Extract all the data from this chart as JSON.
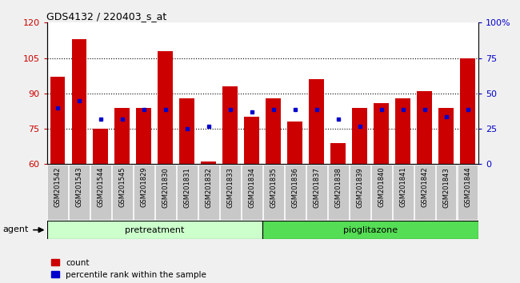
{
  "title": "GDS4132 / 220403_s_at",
  "samples": [
    "GSM201542",
    "GSM201543",
    "GSM201544",
    "GSM201545",
    "GSM201829",
    "GSM201830",
    "GSM201831",
    "GSM201832",
    "GSM201833",
    "GSM201834",
    "GSM201835",
    "GSM201836",
    "GSM201837",
    "GSM201838",
    "GSM201839",
    "GSM201840",
    "GSM201841",
    "GSM201842",
    "GSM201843",
    "GSM201844"
  ],
  "bar_heights": [
    97,
    113,
    75,
    84,
    84,
    108,
    88,
    61,
    93,
    80,
    88,
    78,
    96,
    69,
    84,
    86,
    88,
    91,
    84,
    105
  ],
  "blue_vals": [
    84,
    87,
    79,
    79,
    83,
    83,
    75,
    76,
    83,
    82,
    83,
    83,
    83,
    79,
    76,
    83,
    83,
    83,
    80,
    83
  ],
  "bar_color": "#cc0000",
  "blue_color": "#0000cc",
  "bg_color": "#e8e8e8",
  "ylim_left": [
    60,
    120
  ],
  "ylim_right": [
    0,
    100
  ],
  "yticks_left": [
    60,
    75,
    90,
    105,
    120
  ],
  "yticks_right": [
    0,
    25,
    50,
    75,
    100
  ],
  "ytick_labels_right": [
    "0",
    "25",
    "50",
    "75",
    "100%"
  ],
  "grid_vals": [
    75,
    90,
    105
  ],
  "pretreatment_label": "pretreatment",
  "pioglitazone_label": "pioglitazone",
  "agent_label": "agent",
  "n_pretreatment": 10,
  "pretreatment_color": "#ccffcc",
  "pioglitazone_color": "#55dd55",
  "legend_count_label": "count",
  "legend_pct_label": "percentile rank within the sample",
  "bar_width": 0.7,
  "tick_bg_color": "#c8c8c8",
  "fig_bg_color": "#f0f0f0"
}
